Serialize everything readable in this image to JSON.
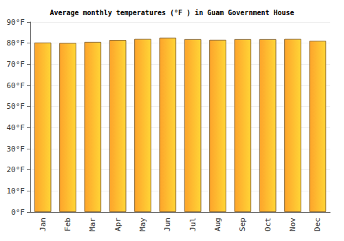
{
  "chart_data": {
    "type": "bar",
    "title": "Average monthly temperatures (°F ) in Guam Government House",
    "categories": [
      "Jan",
      "Feb",
      "Mar",
      "Apr",
      "May",
      "Jun",
      "Jul",
      "Aug",
      "Sep",
      "Oct",
      "Nov",
      "Dec"
    ],
    "values": [
      80.3,
      80.1,
      80.6,
      81.5,
      82.0,
      82.6,
      81.9,
      81.6,
      81.9,
      81.9,
      82.0,
      81.1
    ],
    "color": "#fda42b",
    "ylim": [
      0,
      90
    ],
    "yticks": [
      {
        "value": 0,
        "label": "0°F"
      },
      {
        "value": 10,
        "label": "10°F"
      },
      {
        "value": 20,
        "label": "20°F"
      },
      {
        "value": 30,
        "label": "30°F"
      },
      {
        "value": 40,
        "label": "40°F"
      },
      {
        "value": 50,
        "label": "50°F"
      },
      {
        "value": 60,
        "label": "60°F"
      },
      {
        "value": 70,
        "label": "70°F"
      },
      {
        "value": 80,
        "label": "80°F"
      },
      {
        "value": 90,
        "label": "90°F"
      }
    ],
    "grid": true
  }
}
